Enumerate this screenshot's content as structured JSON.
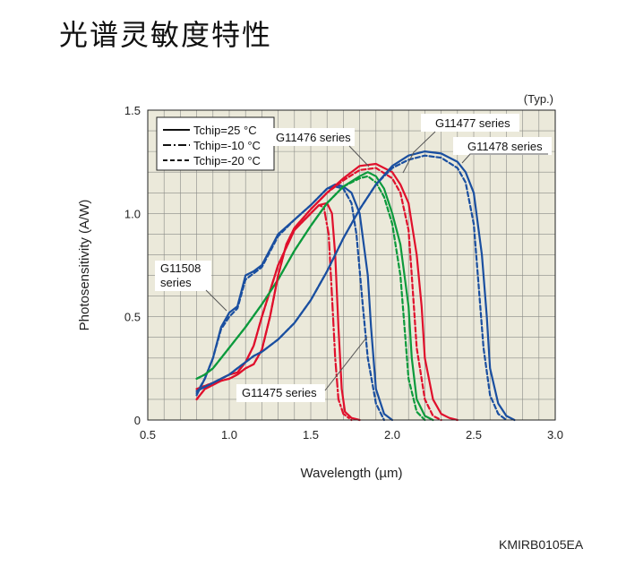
{
  "page": {
    "title": "光谱灵敏度特性",
    "figure_code": "KMIRB0105EA"
  },
  "chart_data": {
    "type": "line",
    "xlabel": "Wavelength (µm)",
    "ylabel": "Photosensitivity (A/W)",
    "xlim": [
      0.5,
      3.0
    ],
    "ylim": [
      0,
      1.5
    ],
    "x_ticks": [
      "0.5",
      "1.0",
      "1.5",
      "2.0",
      "2.5",
      "3.0"
    ],
    "y_ticks": [
      "0",
      "0.5",
      "1.0",
      "1.5"
    ],
    "grid": true,
    "note": "(Typ.)",
    "legend_position": "top-left",
    "legend": [
      {
        "label": "Tchip=25 °C",
        "dash": "solid"
      },
      {
        "label": "Tchip=-10 °C",
        "dash": "dashdot"
      },
      {
        "label": "Tchip=-20 °C",
        "dash": "dashed"
      }
    ],
    "labels": [
      {
        "text": "G11476 series"
      },
      {
        "text": "G11477 series"
      },
      {
        "text": "G11478 series"
      },
      {
        "text": "G11508 series"
      },
      {
        "text": "G11475 series"
      }
    ],
    "colors": {
      "G11475": "#e0102c",
      "G11476": "#0c9a3c",
      "G11477": "#e0102c",
      "G11478": "#1a4fa0",
      "G11508": "#1a4fa0",
      "plot_bg": "#ebe9da",
      "grid": "#8a8a86"
    },
    "series": [
      {
        "name": "G11475 series",
        "temperature": "Tchip=25 °C",
        "x": [
          0.8,
          0.9,
          0.95,
          1.0,
          1.05,
          1.1,
          1.15,
          1.2,
          1.3,
          1.4,
          1.5,
          1.55,
          1.6,
          1.63,
          1.65,
          1.67,
          1.69,
          1.71,
          1.75,
          1.8
        ],
        "y": [
          0.15,
          0.18,
          0.2,
          0.22,
          0.23,
          0.28,
          0.36,
          0.5,
          0.75,
          0.92,
          1.0,
          1.04,
          1.05,
          1.0,
          0.8,
          0.45,
          0.15,
          0.04,
          0.01,
          0
        ]
      },
      {
        "name": "G11475 series",
        "temperature": "Tchip=-10 °C",
        "x": [
          0.8,
          0.9,
          0.95,
          1.0,
          1.05,
          1.1,
          1.15,
          1.2,
          1.3,
          1.4,
          1.5,
          1.55,
          1.58,
          1.61,
          1.63,
          1.65,
          1.67,
          1.7,
          1.75
        ],
        "y": [
          0.15,
          0.18,
          0.2,
          0.22,
          0.23,
          0.28,
          0.36,
          0.5,
          0.75,
          0.92,
          1.0,
          1.04,
          1.03,
          0.9,
          0.6,
          0.3,
          0.1,
          0.03,
          0
        ]
      },
      {
        "name": "G11508 series",
        "temperature": "Tchip=25 °C",
        "x": [
          0.8,
          0.85,
          0.9,
          0.95,
          1.0,
          1.05,
          1.1,
          1.15,
          1.2,
          1.3,
          1.4,
          1.5,
          1.55,
          1.6,
          1.65,
          1.7,
          1.75,
          1.8,
          1.85,
          1.87,
          1.9,
          1.95,
          2.0
        ],
        "y": [
          0.12,
          0.2,
          0.3,
          0.45,
          0.52,
          0.55,
          0.7,
          0.72,
          0.75,
          0.9,
          0.97,
          1.04,
          1.08,
          1.12,
          1.14,
          1.13,
          1.1,
          1.0,
          0.7,
          0.45,
          0.15,
          0.03,
          0
        ]
      },
      {
        "name": "G11508 series",
        "temperature": "Tchip=-20 °C",
        "x": [
          0.8,
          0.85,
          0.9,
          0.95,
          1.0,
          1.05,
          1.1,
          1.15,
          1.2,
          1.3,
          1.4,
          1.5,
          1.55,
          1.6,
          1.65,
          1.7,
          1.75,
          1.78,
          1.82,
          1.85,
          1.9,
          1.95
        ],
        "y": [
          0.13,
          0.2,
          0.3,
          0.44,
          0.5,
          0.54,
          0.68,
          0.71,
          0.74,
          0.89,
          0.97,
          1.04,
          1.08,
          1.12,
          1.13,
          1.12,
          1.05,
          0.9,
          0.55,
          0.3,
          0.08,
          0
        ]
      },
      {
        "name": "G11476 series",
        "temperature": "Tchip=25 °C",
        "x": [
          0.8,
          0.85,
          0.9,
          0.95,
          1.0,
          1.1,
          1.2,
          1.3,
          1.4,
          1.5,
          1.6,
          1.7,
          1.8,
          1.85,
          1.9,
          1.95,
          2.0,
          2.05,
          2.1,
          2.12,
          2.15,
          2.2,
          2.25
        ],
        "y": [
          0.2,
          0.22,
          0.25,
          0.3,
          0.35,
          0.45,
          0.56,
          0.68,
          0.82,
          0.94,
          1.05,
          1.13,
          1.18,
          1.2,
          1.18,
          1.12,
          1.0,
          0.85,
          0.55,
          0.3,
          0.1,
          0.02,
          0
        ]
      },
      {
        "name": "G11476 series",
        "temperature": "Tchip=-20 °C",
        "x": [
          0.8,
          0.85,
          0.9,
          0.95,
          1.0,
          1.1,
          1.2,
          1.3,
          1.4,
          1.5,
          1.6,
          1.7,
          1.8,
          1.85,
          1.9,
          1.95,
          2.0,
          2.05,
          2.08,
          2.1,
          2.15,
          2.2
        ],
        "y": [
          0.2,
          0.22,
          0.25,
          0.3,
          0.35,
          0.45,
          0.56,
          0.68,
          0.82,
          0.94,
          1.05,
          1.13,
          1.17,
          1.18,
          1.15,
          1.08,
          0.95,
          0.7,
          0.4,
          0.2,
          0.04,
          0
        ]
      },
      {
        "name": "G11477 series",
        "temperature": "Tchip=25 °C",
        "x": [
          0.8,
          0.85,
          0.9,
          0.95,
          1.0,
          1.05,
          1.1,
          1.15,
          1.2,
          1.25,
          1.3,
          1.35,
          1.4,
          1.5,
          1.6,
          1.7,
          1.8,
          1.9,
          2.0,
          2.05,
          2.1,
          2.15,
          2.18,
          2.2,
          2.25,
          2.3,
          2.35,
          2.4
        ],
        "y": [
          0.1,
          0.15,
          0.17,
          0.19,
          0.2,
          0.22,
          0.25,
          0.27,
          0.34,
          0.5,
          0.7,
          0.85,
          0.93,
          1.02,
          1.1,
          1.17,
          1.23,
          1.24,
          1.2,
          1.14,
          1.05,
          0.8,
          0.55,
          0.3,
          0.1,
          0.03,
          0.01,
          0
        ]
      },
      {
        "name": "G11477 series",
        "temperature": "Tchip=-20 °C",
        "x": [
          0.8,
          0.85,
          0.9,
          0.95,
          1.0,
          1.05,
          1.1,
          1.15,
          1.2,
          1.25,
          1.3,
          1.35,
          1.4,
          1.5,
          1.6,
          1.7,
          1.8,
          1.9,
          2.0,
          2.05,
          2.1,
          2.12,
          2.15,
          2.2,
          2.25,
          2.3
        ],
        "y": [
          0.1,
          0.15,
          0.17,
          0.19,
          0.2,
          0.22,
          0.25,
          0.27,
          0.34,
          0.5,
          0.7,
          0.85,
          0.93,
          1.02,
          1.1,
          1.16,
          1.21,
          1.22,
          1.17,
          1.1,
          0.92,
          0.7,
          0.35,
          0.1,
          0.02,
          0
        ]
      },
      {
        "name": "G11478 series",
        "temperature": "Tchip=25 °C",
        "x": [
          0.8,
          0.85,
          0.9,
          0.95,
          1.0,
          1.05,
          1.1,
          1.15,
          1.2,
          1.3,
          1.4,
          1.5,
          1.6,
          1.7,
          1.8,
          1.9,
          2.0,
          2.1,
          2.2,
          2.3,
          2.4,
          2.45,
          2.5,
          2.55,
          2.58,
          2.6,
          2.65,
          2.7,
          2.75
        ],
        "y": [
          0.14,
          0.16,
          0.18,
          0.2,
          0.22,
          0.25,
          0.28,
          0.31,
          0.33,
          0.39,
          0.47,
          0.58,
          0.72,
          0.88,
          1.02,
          1.14,
          1.23,
          1.28,
          1.3,
          1.29,
          1.25,
          1.2,
          1.1,
          0.8,
          0.5,
          0.25,
          0.08,
          0.02,
          0
        ]
      },
      {
        "name": "G11478 series",
        "temperature": "Tchip=-20 °C",
        "x": [
          0.8,
          0.85,
          0.9,
          0.95,
          1.0,
          1.05,
          1.1,
          1.15,
          1.2,
          1.3,
          1.4,
          1.5,
          1.6,
          1.7,
          1.8,
          1.9,
          2.0,
          2.1,
          2.2,
          2.3,
          2.4,
          2.45,
          2.5,
          2.53,
          2.56,
          2.6,
          2.65,
          2.7
        ],
        "y": [
          0.14,
          0.16,
          0.18,
          0.2,
          0.22,
          0.25,
          0.28,
          0.31,
          0.33,
          0.39,
          0.47,
          0.58,
          0.72,
          0.88,
          1.02,
          1.14,
          1.22,
          1.26,
          1.28,
          1.27,
          1.22,
          1.15,
          0.95,
          0.65,
          0.35,
          0.12,
          0.03,
          0
        ]
      }
    ]
  }
}
